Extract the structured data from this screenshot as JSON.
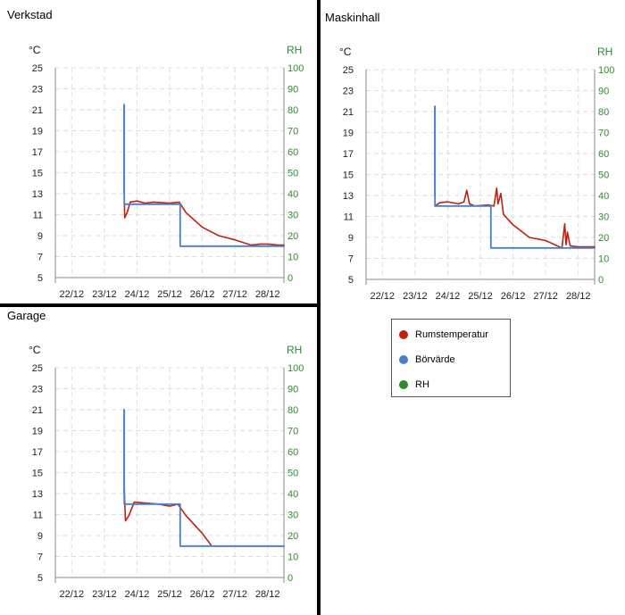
{
  "colors": {
    "temperature": "#c0200f",
    "setpoint": "#4a7fc8",
    "rh": "#2e8b2e",
    "grid": "#dddddd",
    "axis": "#888888"
  },
  "legend": {
    "items": [
      {
        "label": "Rumstemperatur",
        "color": "#c0200f"
      },
      {
        "label": "Börvärde",
        "color": "#4a7fc8"
      },
      {
        "label": "RH",
        "color": "#2e8b2e"
      }
    ]
  },
  "chart_data": [
    {
      "type": "line",
      "title": "Verkstad",
      "ylabel_left": "°C",
      "ylabel_right": "RH",
      "x_ticks": [
        "22/12",
        "23/12",
        "24/12",
        "25/12",
        "26/12",
        "27/12",
        "28/12"
      ],
      "xlim": [
        "21/12 12:00",
        "28/12 12:00"
      ],
      "y_left": {
        "lim": [
          5,
          25
        ],
        "ticks": [
          5,
          7,
          9,
          11,
          13,
          15,
          17,
          19,
          21,
          23,
          25
        ]
      },
      "y_right": {
        "lim": [
          0,
          100
        ],
        "ticks": [
          0,
          10,
          20,
          30,
          40,
          50,
          60,
          70,
          80,
          90,
          100
        ]
      },
      "grid": true,
      "series": [
        {
          "name": "Rumstemperatur",
          "color": "#c0200f",
          "x": [
            "23/12 14:38",
            "23/12 15:00",
            "23/12 17:00",
            "23/12 19:00",
            "24/12 00:00",
            "24/12 06:00",
            "24/12 12:00",
            "25/12 00:00",
            "25/12 07:00",
            "25/12 12:00",
            "26/12 00:00",
            "26/12 12:00",
            "27/12 00:00",
            "27/12 12:00",
            "27/12 19:00",
            "28/12 00:00",
            "28/12 08:00",
            "28/12 12:00"
          ],
          "y": [
            12.6,
            10.7,
            11.3,
            12.2,
            12.3,
            12.1,
            12.2,
            12.1,
            12.2,
            11.2,
            9.8,
            9.0,
            8.6,
            8.1,
            8.2,
            8.2,
            8.1,
            8.1
          ]
        },
        {
          "name": "Börvärde",
          "color": "#4a7fc8",
          "x": [
            "23/12 14:30",
            "23/12 14:30",
            "23/12 14:38",
            "23/12 14:38",
            "25/12 07:45",
            "25/12 07:45",
            "28/12 12:00"
          ],
          "y": [
            13.0,
            21.5,
            21.5,
            12.0,
            12.0,
            8.0,
            8.0
          ]
        }
      ]
    },
    {
      "type": "line",
      "title": "Maskinhall",
      "ylabel_left": "°C",
      "ylabel_right": "RH",
      "x_ticks": [
        "22/12",
        "23/12",
        "24/12",
        "25/12",
        "26/12",
        "27/12",
        "28/12"
      ],
      "xlim": [
        "21/12 12:00",
        "28/12 12:00"
      ],
      "y_left": {
        "lim": [
          5,
          25
        ],
        "ticks": [
          5,
          7,
          9,
          11,
          13,
          15,
          17,
          19,
          21,
          23,
          25
        ]
      },
      "y_right": {
        "lim": [
          0,
          100
        ],
        "ticks": [
          0,
          10,
          20,
          30,
          40,
          50,
          60,
          70,
          80,
          90,
          100
        ]
      },
      "grid": true,
      "series": [
        {
          "name": "Rumstemperatur",
          "color": "#c0200f",
          "x": [
            "23/12 14:38",
            "23/12 18:00",
            "24/12 00:00",
            "24/12 08:00",
            "24/12 12:00",
            "24/12 14:00",
            "24/12 16:00",
            "24/12 20:00",
            "25/12 06:00",
            "25/12 10:00",
            "25/12 12:00",
            "25/12 13:00",
            "25/12 15:00",
            "25/12 17:00",
            "26/12 00:00",
            "26/12 12:00",
            "27/12 00:00",
            "27/12 12:00",
            "27/12 14:00",
            "27/12 15:00",
            "27/12 16:00",
            "27/12 18:00",
            "28/12 00:00",
            "28/12 12:00"
          ],
          "y": [
            12.0,
            12.3,
            12.4,
            12.2,
            12.4,
            13.5,
            12.2,
            12.0,
            12.1,
            12.0,
            13.7,
            12.2,
            13.2,
            11.2,
            10.2,
            9.0,
            8.7,
            8.0,
            10.3,
            8.3,
            9.5,
            8.2,
            8.1,
            8.1
          ]
        },
        {
          "name": "Börvärde",
          "color": "#4a7fc8",
          "x": [
            "23/12 14:30",
            "23/12 14:30",
            "23/12 14:38",
            "23/12 14:38",
            "25/12 07:45",
            "25/12 07:45",
            "28/12 12:00"
          ],
          "y": [
            13.0,
            21.5,
            21.5,
            12.0,
            12.0,
            8.0,
            8.0
          ]
        }
      ]
    },
    {
      "type": "line",
      "title": "Garage",
      "ylabel_left": "°C",
      "ylabel_right": "RH",
      "x_ticks": [
        "22/12",
        "23/12",
        "24/12",
        "25/12",
        "26/12",
        "27/12",
        "28/12"
      ],
      "xlim": [
        "21/12 12:00",
        "28/12 12:00"
      ],
      "y_left": {
        "lim": [
          5,
          25
        ],
        "ticks": [
          5,
          7,
          9,
          11,
          13,
          15,
          17,
          19,
          21,
          23,
          25
        ]
      },
      "y_right": {
        "lim": [
          0,
          100
        ],
        "ticks": [
          0,
          10,
          20,
          30,
          40,
          50,
          60,
          70,
          80,
          90,
          100
        ]
      },
      "grid": true,
      "series": [
        {
          "name": "Rumstemperatur",
          "color": "#c0200f",
          "x": [
            "23/12 14:38",
            "23/12 15:30",
            "23/12 18:00",
            "23/12 22:00",
            "24/12 06:00",
            "24/12 16:00",
            "25/12 00:00",
            "25/12 06:00",
            "25/12 12:00",
            "26/12 00:00",
            "26/12 07:00",
            "26/12 12:00",
            "27/12 00:00",
            "27/12 12:00",
            "28/12 00:00",
            "28/12 12:00"
          ],
          "y": [
            13.5,
            10.4,
            10.9,
            12.2,
            12.1,
            12.0,
            11.8,
            12.0,
            10.9,
            9.2,
            8.0,
            8.0,
            8.0,
            8.0,
            8.0,
            8.0
          ]
        },
        {
          "name": "Börvärde",
          "color": "#4a7fc8",
          "x": [
            "23/12 14:30",
            "23/12 14:30",
            "23/12 14:38",
            "23/12 14:38",
            "25/12 07:45",
            "25/12 07:45",
            "28/12 12:00"
          ],
          "y": [
            13.0,
            21.0,
            21.0,
            12.0,
            12.0,
            8.0,
            8.0
          ]
        }
      ]
    }
  ]
}
